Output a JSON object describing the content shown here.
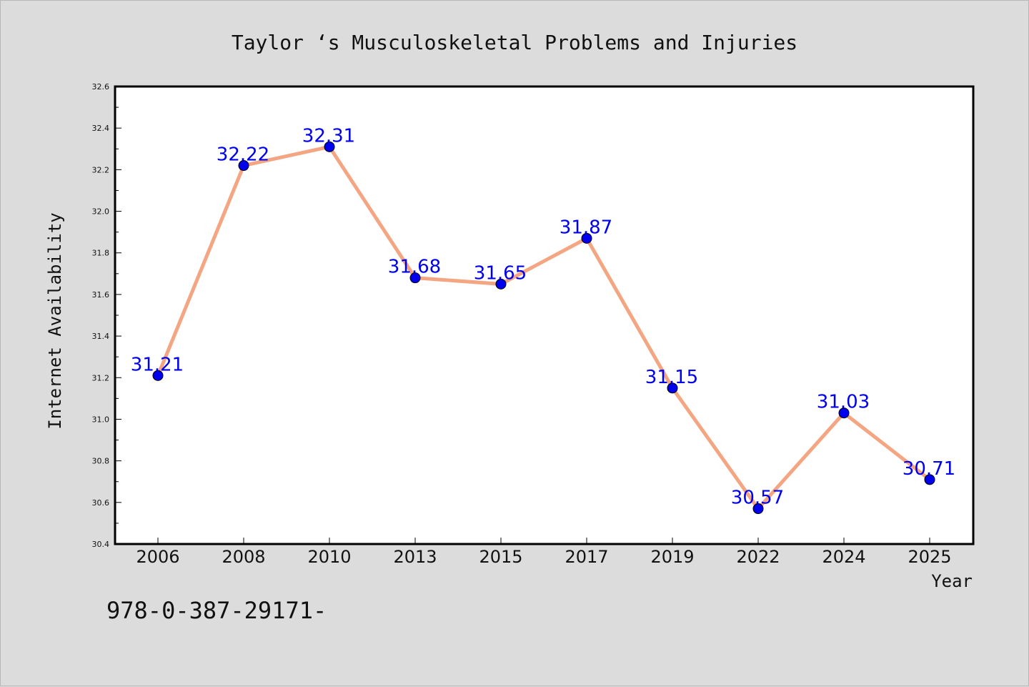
{
  "chart_data": {
    "type": "line",
    "title": "Taylor ‘s Musculoskeletal Problems and Injuries",
    "xlabel": "Year",
    "ylabel": "Internet Availability",
    "categories": [
      "2006",
      "2008",
      "2010",
      "2013",
      "2015",
      "2017",
      "2019",
      "2022",
      "2024",
      "2025"
    ],
    "values": [
      31.21,
      32.22,
      32.31,
      31.68,
      31.65,
      31.87,
      31.15,
      30.57,
      31.03,
      30.71
    ],
    "data_labels": [
      "31.21",
      "32.22",
      "32.31",
      "31.68",
      "31.65",
      "31.87",
      "31.15",
      "30.57",
      "31.03",
      "30.71"
    ],
    "ylim": [
      30.4,
      32.6
    ],
    "yticks": [
      "30.4",
      "30.6",
      "30.8",
      "31.0",
      "31.2",
      "31.4",
      "31.6",
      "31.8",
      "32.0",
      "32.2",
      "32.4",
      "32.6"
    ],
    "grid": false,
    "line_color": "#f4a582",
    "marker_color": "#0000ee",
    "label_color": "#0000ee"
  },
  "footer_text": "978-0-387-29171-"
}
